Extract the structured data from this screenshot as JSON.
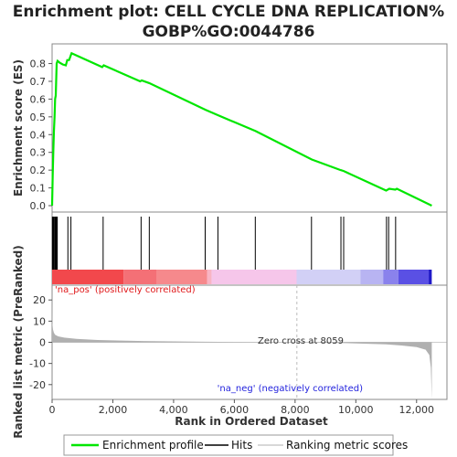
{
  "chart_data": {
    "type": "line",
    "title_line1": "Enrichment plot: CELL CYCLE DNA REPLICATION%",
    "title_line2": "GOBP%GO:0044786",
    "ylabel_top": "Enrichment score (ES)",
    "ylabel_bottom": "Ranked list metric (PreRanked)",
    "xlabel": "Rank in Ordered Dataset",
    "es_yticks": [
      "0.0",
      "0.1",
      "0.2",
      "0.3",
      "0.4",
      "0.5",
      "0.6",
      "0.7",
      "0.8"
    ],
    "es_ylim": [
      0,
      0.88
    ],
    "metric_yticks": [
      "20",
      "10",
      "0",
      "-10",
      "-20"
    ],
    "metric_ylim": [
      -27,
      27
    ],
    "xticks": [
      "0",
      "2,000",
      "4,000",
      "6,000",
      "8,000",
      "10,000",
      "12,000"
    ],
    "xlim": [
      0,
      13000
    ],
    "n_genes": 12500,
    "zero_cross": 8059,
    "zero_cross_label": "Zero cross at 8059",
    "pos_label": "'na_pos' (positively correlated)",
    "neg_label": "'na_neg' (negatively correlated)",
    "es_curve": {
      "x": [
        0,
        20,
        40,
        60,
        80,
        100,
        120,
        150,
        180,
        250,
        350,
        450,
        500,
        560,
        640,
        1650,
        1700,
        2900,
        2950,
        3200,
        5050,
        5450,
        6700,
        8550,
        9500,
        9600,
        11000,
        11100,
        11300,
        11350,
        12500
      ],
      "y": [
        0.0,
        0.18,
        0.3,
        0.42,
        0.5,
        0.6,
        0.62,
        0.8,
        0.815,
        0.805,
        0.795,
        0.79,
        0.82,
        0.82,
        0.858,
        0.78,
        0.79,
        0.7,
        0.705,
        0.69,
        0.54,
        0.51,
        0.42,
        0.26,
        0.2,
        0.195,
        0.085,
        0.095,
        0.09,
        0.095,
        0.0
      ]
    },
    "hits": [
      10,
      30,
      50,
      70,
      100,
      120,
      150,
      170,
      520,
      620,
      1680,
      2930,
      3200,
      5040,
      5460,
      6690,
      8540,
      9510,
      9600,
      11010,
      11080,
      11310
    ],
    "heatmap_segments": [
      {
        "from": 0,
        "to": 2350,
        "color": "#f2484c"
      },
      {
        "from": 2350,
        "to": 3450,
        "color": "#f47076"
      },
      {
        "from": 3450,
        "to": 5100,
        "color": "#f6898c"
      },
      {
        "from": 5100,
        "to": 5250,
        "color": "#f8b4c4"
      },
      {
        "from": 5250,
        "to": 8050,
        "color": "#f6c6ea"
      },
      {
        "from": 8050,
        "to": 10150,
        "color": "#d2d0f6"
      },
      {
        "from": 10150,
        "to": 10900,
        "color": "#b8b4f2"
      },
      {
        "from": 10900,
        "to": 11400,
        "color": "#8a82ec"
      },
      {
        "from": 11400,
        "to": 12400,
        "color": "#5a50e4"
      },
      {
        "from": 12400,
        "to": 12500,
        "color": "#2018c8"
      }
    ],
    "metric_curve": {
      "x": [
        0,
        10,
        30,
        60,
        100,
        200,
        400,
        800,
        1500,
        3000,
        5000,
        7000,
        8059,
        9000,
        10000,
        11000,
        11500,
        12000,
        12300,
        12420,
        12470,
        12500
      ],
      "y": [
        25,
        9,
        6,
        4.5,
        3.6,
        2.8,
        2.2,
        1.6,
        1.1,
        0.6,
        0.25,
        0.08,
        0,
        -0.2,
        -0.5,
        -1.0,
        -1.5,
        -2.3,
        -3.5,
        -6,
        -12,
        -27
      ]
    },
    "legend": [
      "Enrichment profile",
      "Hits",
      "Ranking metric scores"
    ],
    "colors": {
      "es_line": "#00e600",
      "hit": "#000000",
      "metric_fill": "#b0b0b0",
      "zero_line": "#bbbbbb",
      "pos_text": "#e0191b",
      "neg_text": "#2222dd"
    }
  }
}
